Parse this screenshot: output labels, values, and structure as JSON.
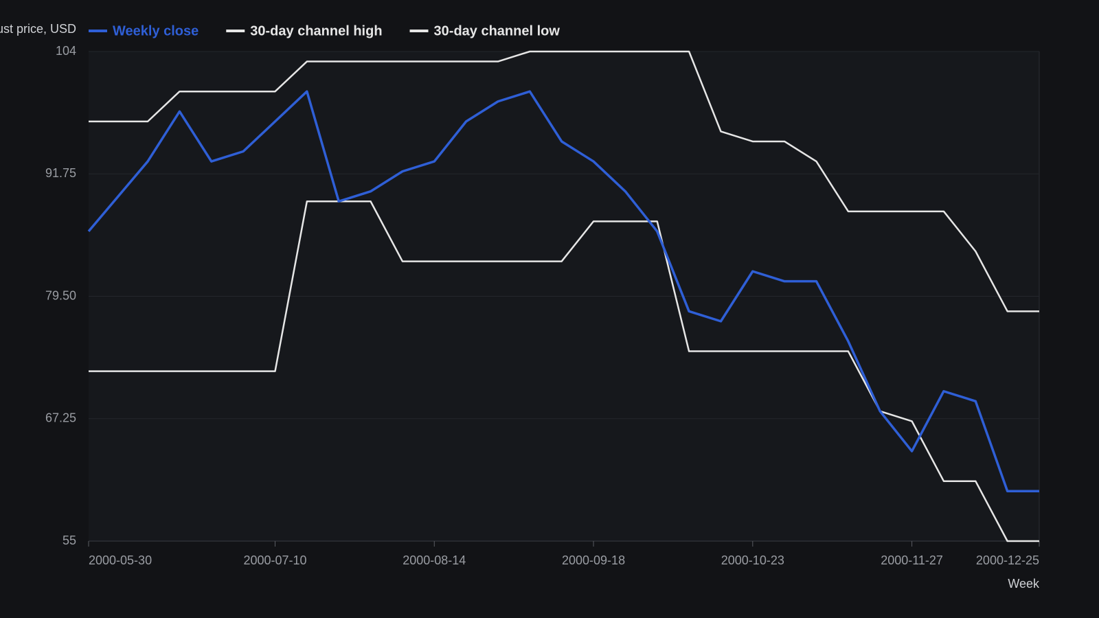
{
  "chart_data": {
    "type": "line",
    "y_label": "Adjust price, USD",
    "x_label": "Week",
    "x": [
      "2000-05-30",
      "2000-06-12",
      "2000-06-19",
      "2000-06-26",
      "2000-07-03",
      "2000-07-10",
      "2000-07-17",
      "2000-07-24",
      "2000-07-31",
      "2000-08-07",
      "2000-08-14",
      "2000-08-21",
      "2000-08-28",
      "2000-09-04",
      "2000-09-11",
      "2000-09-18",
      "2000-09-25",
      "2000-10-02",
      "2000-10-09",
      "2000-10-16",
      "2000-10-23",
      "2000-10-30",
      "2000-11-06",
      "2000-11-13",
      "2000-11-20",
      "2000-11-27",
      "2000-12-04",
      "2000-12-11",
      "2000-12-18",
      "2000-12-25"
    ],
    "series": [
      {
        "name": "Weekly close",
        "color": "#2f5fd6",
        "values": [
          86,
          93,
          98,
          93,
          94,
          97,
          100,
          89,
          90,
          92,
          93,
          97,
          99,
          100,
          95,
          93,
          90,
          86,
          78,
          77,
          82,
          81,
          81,
          75,
          68,
          64,
          70,
          69,
          60,
          60
        ]
      },
      {
        "name": "30-day channel high",
        "color": "#e6e6e6",
        "values": [
          97,
          97,
          100,
          100,
          100,
          100,
          103,
          103,
          103,
          103,
          103,
          103,
          103,
          104,
          104,
          104,
          104,
          104,
          104,
          96,
          95,
          95,
          93,
          88,
          88,
          88,
          88,
          84,
          78,
          78
        ]
      },
      {
        "name": "30-day channel low",
        "color": "#e6e6e6",
        "values": [
          72,
          72,
          72,
          72,
          72,
          72,
          89,
          89,
          89,
          83,
          83,
          83,
          83,
          83,
          83,
          87,
          87,
          87,
          74,
          74,
          74,
          74,
          74,
          74,
          68,
          67,
          61,
          61,
          55,
          55
        ]
      }
    ],
    "xlim": [
      "2000-05-30",
      "2000-12-25"
    ],
    "xticks": [
      "2000-05-30",
      "2000-07-10",
      "2000-08-14",
      "2000-09-18",
      "2000-10-23",
      "2000-11-27",
      "2000-12-25"
    ],
    "ylim": [
      55,
      104
    ],
    "yticks": [
      55,
      67.25,
      {
        "value": 79.5,
        "label": "79.50"
      },
      91.75,
      104
    ],
    "grid": true
  }
}
